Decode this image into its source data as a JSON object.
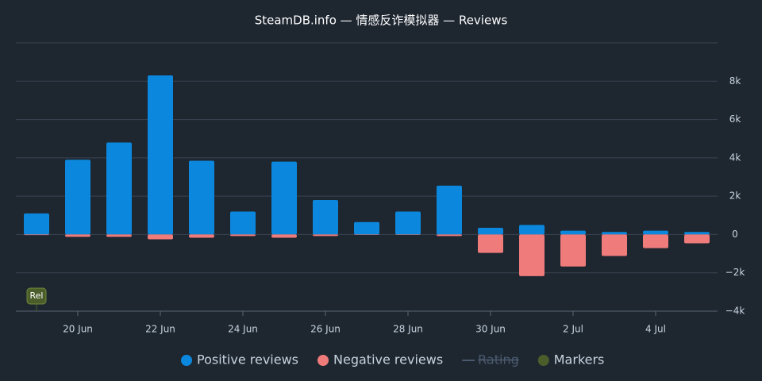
{
  "chart_data": {
    "type": "bar",
    "title": "SteamDB.info — 情感反诈模拟器 — Reviews",
    "categories": [
      null,
      "20 Jun",
      null,
      "22 Jun",
      null,
      "24 Jun",
      null,
      "26 Jun",
      null,
      "28 Jun",
      null,
      "30 Jun",
      null,
      "2 Jul",
      null,
      "4 Jul",
      null
    ],
    "series": [
      {
        "name": "Positive reviews",
        "color": "#0b88dd",
        "values": [
          1100,
          3900,
          4800,
          8300,
          3850,
          1200,
          3800,
          1800,
          650,
          1200,
          2550,
          350,
          500,
          200,
          130,
          200,
          130
        ]
      },
      {
        "name": "Negative reviews",
        "color": "#ef7b7b",
        "values": [
          -30,
          -120,
          -120,
          -250,
          -170,
          -80,
          -170,
          -80,
          -20,
          -20,
          -80,
          -960,
          -2170,
          -1670,
          -1120,
          -710,
          -460
        ]
      }
    ],
    "legend_extra": [
      {
        "name": "Rating",
        "color": "#4a5a6e",
        "hidden": true
      },
      {
        "name": "Markers",
        "color": "#4b5d2b"
      }
    ],
    "markers": [
      {
        "index": 0,
        "label": "Rel"
      }
    ],
    "ylim": [
      -4000,
      10000
    ],
    "yticks": [
      {
        "value": -4000,
        "label": "−4k"
      },
      {
        "value": -2000,
        "label": "−2k"
      },
      0,
      {
        "value": 2000,
        "label": "2k"
      },
      {
        "value": 4000,
        "label": "4k"
      },
      {
        "value": 6000,
        "label": "6k"
      },
      {
        "value": 8000,
        "label": "8k"
      },
      10000
    ],
    "grid": true
  }
}
